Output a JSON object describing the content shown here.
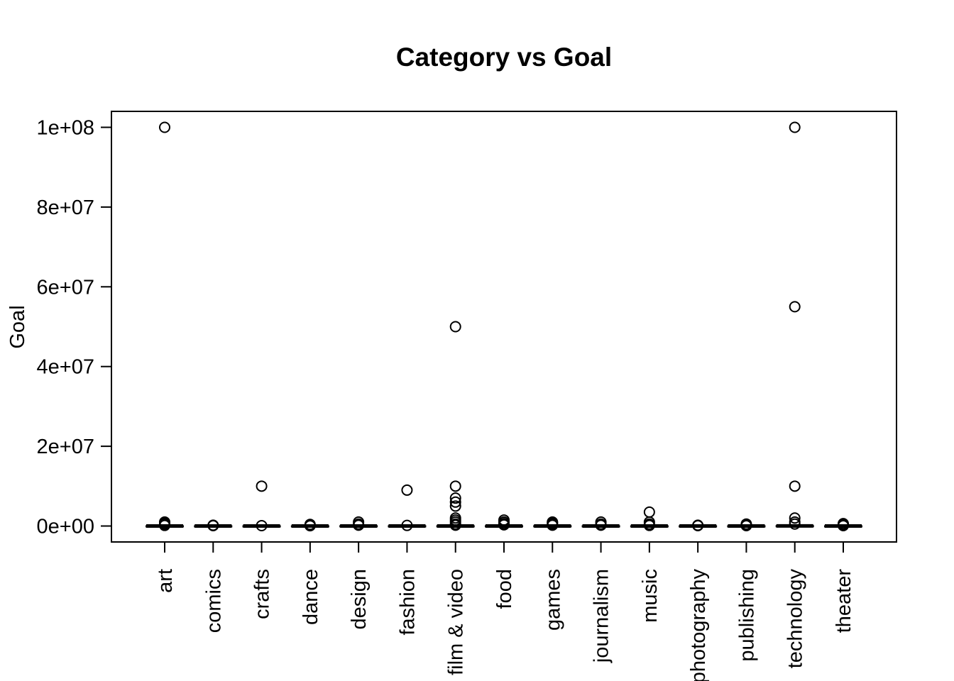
{
  "chart_data": {
    "type": "boxplot",
    "title": "Category vs Goal",
    "xlabel": "",
    "ylabel": "Goal",
    "ylim": [
      -4000000,
      104000000
    ],
    "yticks": [
      0,
      20000000,
      40000000,
      60000000,
      80000000,
      100000000
    ],
    "ytick_labels": [
      "0e+00",
      "2e+07",
      "4e+07",
      "6e+07",
      "8e+07",
      "1e+08"
    ],
    "grid": false,
    "categories": [
      "art",
      "comics",
      "crafts",
      "dance",
      "design",
      "fashion",
      "film & video",
      "food",
      "games",
      "journalism",
      "music",
      "photography",
      "publishing",
      "technology",
      "theater"
    ],
    "boxes": [
      {
        "category": "art",
        "q1": 1500,
        "median": 5000,
        "q3": 15000,
        "whisker_low": 0,
        "whisker_high": 40000,
        "outliers": [
          100000000,
          1000000,
          800000,
          500000,
          300000,
          150000
        ]
      },
      {
        "category": "comics",
        "q1": 2000,
        "median": 5000,
        "q3": 12000,
        "whisker_low": 0,
        "whisker_high": 30000,
        "outliers": [
          200000,
          100000
        ]
      },
      {
        "category": "crafts",
        "q1": 1000,
        "median": 3000,
        "q3": 8000,
        "whisker_low": 0,
        "whisker_high": 20000,
        "outliers": [
          10000000,
          100000
        ]
      },
      {
        "category": "dance",
        "q1": 1500,
        "median": 4000,
        "q3": 8000,
        "whisker_low": 0,
        "whisker_high": 18000,
        "outliers": [
          400000,
          150000,
          80000
        ]
      },
      {
        "category": "design",
        "q1": 3000,
        "median": 10000,
        "q3": 30000,
        "whisker_low": 0,
        "whisker_high": 70000,
        "outliers": [
          1000000,
          500000,
          200000
        ]
      },
      {
        "category": "fashion",
        "q1": 2000,
        "median": 6000,
        "q3": 20000,
        "whisker_low": 0,
        "whisker_high": 45000,
        "outliers": [
          9000000,
          150000
        ]
      },
      {
        "category": "film & video",
        "q1": 2000,
        "median": 8000,
        "q3": 25000,
        "whisker_low": 0,
        "whisker_high": 60000,
        "outliers": [
          50000000,
          10000000,
          7000000,
          6000000,
          5000000,
          2000000,
          1500000,
          1000000,
          500000,
          200000
        ]
      },
      {
        "category": "food",
        "q1": 3000,
        "median": 10000,
        "q3": 25000,
        "whisker_low": 0,
        "whisker_high": 60000,
        "outliers": [
          1500000,
          1000000,
          600000,
          300000
        ]
      },
      {
        "category": "games",
        "q1": 3000,
        "median": 10000,
        "q3": 30000,
        "whisker_low": 0,
        "whisker_high": 70000,
        "outliers": [
          1000000,
          800000,
          500000,
          200000
        ]
      },
      {
        "category": "journalism",
        "q1": 2000,
        "median": 5000,
        "q3": 15000,
        "whisker_low": 0,
        "whisker_high": 35000,
        "outliers": [
          1000000,
          500000,
          200000
        ]
      },
      {
        "category": "music",
        "q1": 1500,
        "median": 5000,
        "q3": 12000,
        "whisker_low": 0,
        "whisker_high": 28000,
        "outliers": [
          3500000,
          1000000,
          500000,
          150000
        ]
      },
      {
        "category": "photography",
        "q1": 1500,
        "median": 5000,
        "q3": 10000,
        "whisker_low": 0,
        "whisker_high": 22000,
        "outliers": [
          200000,
          100000
        ]
      },
      {
        "category": "publishing",
        "q1": 2000,
        "median": 5000,
        "q3": 12000,
        "whisker_low": 0,
        "whisker_high": 28000,
        "outliers": [
          500000,
          200000,
          100000
        ]
      },
      {
        "category": "technology",
        "q1": 5000,
        "median": 20000,
        "q3": 50000,
        "whisker_low": 0,
        "whisker_high": 120000,
        "outliers": [
          100000000,
          55000000,
          10000000,
          2000000,
          1000000,
          500000
        ]
      },
      {
        "category": "theater",
        "q1": 1500,
        "median": 4000,
        "q3": 10000,
        "whisker_low": 0,
        "whisker_high": 22000,
        "outliers": [
          600000,
          300000,
          100000
        ]
      }
    ]
  }
}
